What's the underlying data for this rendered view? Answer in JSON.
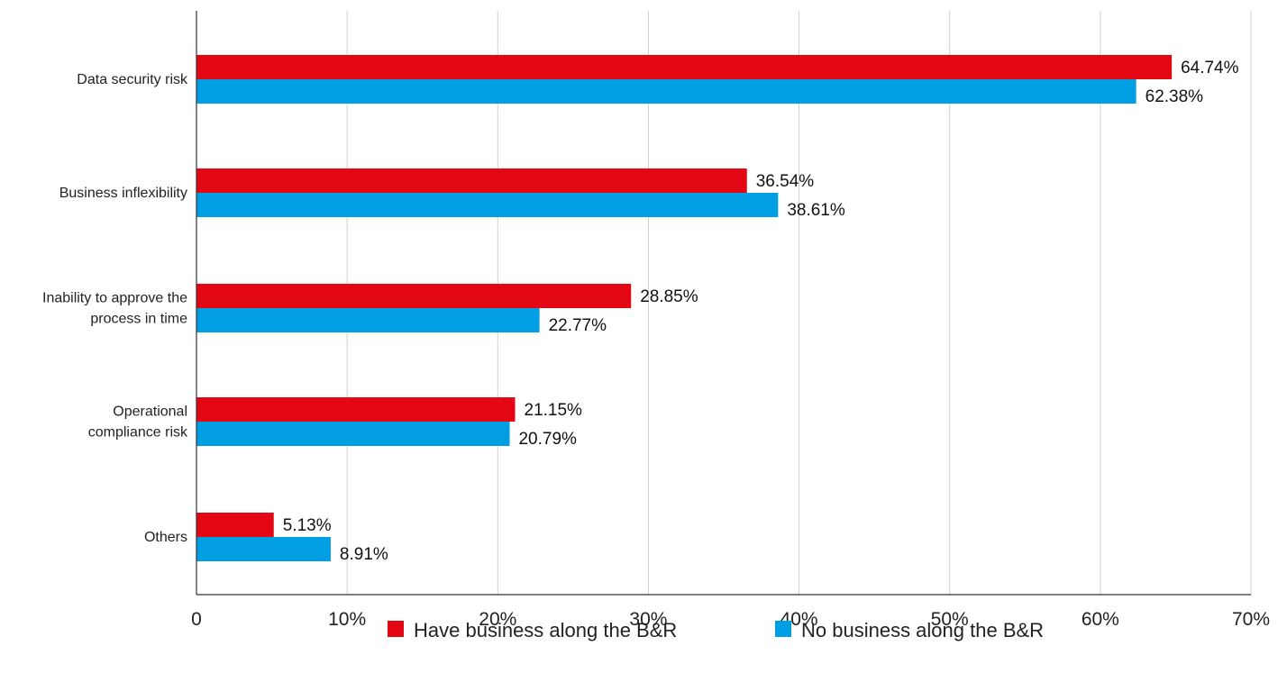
{
  "chart_data": {
    "type": "bar",
    "orientation": "horizontal",
    "title": "",
    "xlabel": "",
    "ylabel": "",
    "categories": [
      "Data security risk",
      "Business inflexibility",
      "Inability to approve the process in time",
      "Operational compliance risk",
      "Others"
    ],
    "category_lines": [
      [
        "Data security risk"
      ],
      [
        "Business inflexibility"
      ],
      [
        "Inability to approve the",
        "process in time"
      ],
      [
        "Operational",
        "compliance risk"
      ],
      [
        "Others"
      ]
    ],
    "series": [
      {
        "name": "Have business along the B&R",
        "color": "#e30613",
        "values": [
          64.74,
          36.54,
          28.85,
          21.15,
          5.13
        ],
        "labels": [
          "64.74%",
          "36.54%",
          "28.85%",
          "21.15%",
          "5.13%"
        ]
      },
      {
        "name": "No business along the B&R",
        "color": "#009fe3",
        "values": [
          62.38,
          38.61,
          22.77,
          20.79,
          8.91
        ],
        "labels": [
          "62.38%",
          "38.61%",
          "22.77%",
          "20.79%",
          "8.91%"
        ]
      }
    ],
    "xlim": [
      0,
      70
    ],
    "xticks": [
      0,
      10,
      20,
      30,
      40,
      50,
      60,
      70
    ],
    "xtick_labels": [
      "0",
      "10%",
      "20%",
      "30%",
      "40%",
      "50%",
      "60%",
      "70%"
    ],
    "grid": true,
    "gridline_color": "#d0d0d0",
    "axis_color": "#333333",
    "legend_position": "bottom"
  }
}
